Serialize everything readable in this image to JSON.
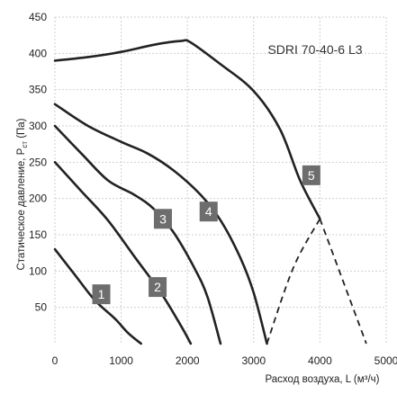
{
  "chart_data": {
    "type": "line",
    "title": "SDRI 70-40-6 L3",
    "xlabel": "Расход воздуха, L (м³/ч)",
    "ylabel_main": "Статическое давление, P",
    "ylabel_sub": "ст",
    "ylabel_unit": " (Па)",
    "xlim": [
      0,
      5000
    ],
    "ylim": [
      0,
      450
    ],
    "grid": true,
    "x_ticks": [
      0,
      1000,
      2000,
      3000,
      4000,
      5000
    ],
    "y_ticks": [
      50,
      100,
      150,
      200,
      250,
      300,
      350,
      400,
      450
    ],
    "series": [
      {
        "name": "1",
        "style": "solid",
        "x": [
          0,
          300,
          600,
          900,
          1100,
          1300
        ],
        "y": [
          130,
          95,
          60,
          35,
          15,
          0
        ]
      },
      {
        "name": "2",
        "style": "solid",
        "x": [
          0,
          400,
          800,
          1200,
          1600,
          1900,
          2050
        ],
        "y": [
          250,
          210,
          170,
          120,
          70,
          25,
          0
        ]
      },
      {
        "name": "3",
        "style": "solid",
        "x": [
          0,
          400,
          800,
          1200,
          1500,
          1800,
          2100,
          2300,
          2500
        ],
        "y": [
          300,
          262,
          225,
          205,
          185,
          152,
          105,
          65,
          0
        ]
      },
      {
        "name": "4",
        "style": "solid",
        "x": [
          0,
          500,
          1000,
          1400,
          1800,
          2200,
          2500,
          2800,
          3000,
          3200
        ],
        "y": [
          330,
          300,
          278,
          262,
          238,
          205,
          170,
          118,
          70,
          0
        ]
      },
      {
        "name": "5",
        "style": "solid",
        "x": [
          0,
          500,
          1000,
          1500,
          1900,
          2050,
          2500,
          3000,
          3400,
          3700,
          4000
        ],
        "y": [
          390,
          395,
          402,
          412,
          417,
          415,
          385,
          348,
          295,
          225,
          172
        ]
      },
      {
        "name": "",
        "style": "dashed",
        "x": [
          3200,
          3600,
          4000
        ],
        "y": [
          0,
          105,
          172
        ]
      },
      {
        "name": "",
        "style": "dashed",
        "x": [
          4000,
          4700
        ],
        "y": [
          172,
          0
        ]
      }
    ],
    "series_labels": [
      {
        "text": "1",
        "x": 700,
        "y": 68
      },
      {
        "text": "2",
        "x": 1550,
        "y": 78
      },
      {
        "text": "3",
        "x": 1630,
        "y": 172
      },
      {
        "text": "4",
        "x": 2320,
        "y": 182
      },
      {
        "text": "5",
        "x": 3870,
        "y": 232
      }
    ],
    "colors": {
      "curve": "#222222",
      "label_box": "#6d6d6d",
      "grid": "#cfcfcf"
    }
  }
}
